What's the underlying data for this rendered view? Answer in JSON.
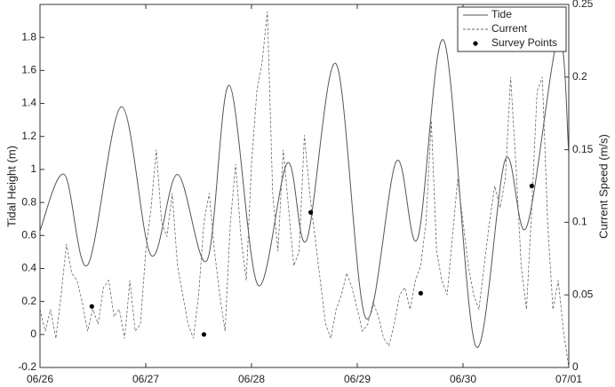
{
  "chart_data": {
    "type": "line",
    "y_label": "Tidal Height (m)",
    "y2_label": "Current Speed (m/s)",
    "xlim": [
      0,
      5
    ],
    "xticks": [
      {
        "value": 0,
        "label": "06/26"
      },
      {
        "value": 1,
        "label": "06/27"
      },
      {
        "value": 2,
        "label": "06/28"
      },
      {
        "value": 3,
        "label": "06/29"
      },
      {
        "value": 4,
        "label": "06/30"
      },
      {
        "value": 5,
        "label": "07/01"
      }
    ],
    "ylim": [
      -0.2,
      2.0
    ],
    "yticks": [
      -0.2,
      0,
      0.2,
      0.4,
      0.6,
      0.8,
      1,
      1.2,
      1.4,
      1.6,
      1.8
    ],
    "y2lim": [
      0,
      0.25
    ],
    "y2ticks": [
      0,
      0.05,
      0.1,
      0.15,
      0.2,
      0.25
    ],
    "legend": "top-right",
    "series": [
      {
        "name": "Tide",
        "type": "line",
        "color": "#555555",
        "dashed": false,
        "x": [
          0,
          0.23,
          0.45,
          0.77,
          1.05,
          1.3,
          1.58,
          1.79,
          2.06,
          2.34,
          2.52,
          2.8,
          3.08,
          3.37,
          3.57,
          3.82,
          4.12,
          4.4,
          4.6,
          4.9,
          5
        ],
        "values": [
          0.63,
          0.97,
          0.42,
          1.38,
          0.48,
          0.97,
          0.45,
          1.51,
          0.3,
          1.04,
          0.57,
          1.64,
          0.1,
          1.05,
          0.58,
          1.78,
          -0.07,
          1.06,
          0.65,
          1.8,
          1.1
        ]
      },
      {
        "name": "Current",
        "type": "line",
        "axis": "y2",
        "color": "#666666",
        "dashed": true,
        "x": [
          0,
          0.05,
          0.1,
          0.15,
          0.2,
          0.25,
          0.3,
          0.35,
          0.4,
          0.45,
          0.5,
          0.55,
          0.6,
          0.65,
          0.7,
          0.75,
          0.8,
          0.85,
          0.9,
          0.95,
          1,
          1.05,
          1.1,
          1.15,
          1.2,
          1.25,
          1.3,
          1.35,
          1.4,
          1.45,
          1.5,
          1.55,
          1.6,
          1.65,
          1.7,
          1.75,
          1.8,
          1.85,
          1.9,
          1.95,
          2,
          2.05,
          2.1,
          2.15,
          2.2,
          2.25,
          2.3,
          2.35,
          2.4,
          2.45,
          2.5,
          2.55,
          2.6,
          2.65,
          2.7,
          2.75,
          2.8,
          2.85,
          2.9,
          2.95,
          3,
          3.05,
          3.1,
          3.15,
          3.2,
          3.25,
          3.3,
          3.35,
          3.4,
          3.45,
          3.5,
          3.55,
          3.6,
          3.65,
          3.7,
          3.75,
          3.8,
          3.85,
          3.9,
          3.95,
          4,
          4.05,
          4.1,
          4.15,
          4.2,
          4.25,
          4.3,
          4.35,
          4.4,
          4.45,
          4.5,
          4.55,
          4.6,
          4.65,
          4.7,
          4.75,
          4.8,
          4.85,
          4.9,
          4.95,
          5
        ],
        "values": [
          0.04,
          0.025,
          0.04,
          0.02,
          0.05,
          0.085,
          0.065,
          0.06,
          0.045,
          0.025,
          0.04,
          0.03,
          0.055,
          0.06,
          0.035,
          0.04,
          0.02,
          0.06,
          0.025,
          0.03,
          0.08,
          0.11,
          0.15,
          0.1,
          0.09,
          0.12,
          0.07,
          0.05,
          0.03,
          0.02,
          0.05,
          0.1,
          0.12,
          0.08,
          0.05,
          0.025,
          0.1,
          0.14,
          0.09,
          0.06,
          0.14,
          0.19,
          0.21,
          0.245,
          0.12,
          0.08,
          0.15,
          0.11,
          0.07,
          0.08,
          0.16,
          0.12,
          0.09,
          0.06,
          0.03,
          0.02,
          0.04,
          0.05,
          0.065,
          0.055,
          0.04,
          0.025,
          0.03,
          0.045,
          0.035,
          0.02,
          0.015,
          0.03,
          0.05,
          0.055,
          0.04,
          0.06,
          0.07,
          0.1,
          0.17,
          0.08,
          0.06,
          0.05,
          0.09,
          0.13,
          0.1,
          0.07,
          0.05,
          0.04,
          0.07,
          0.1,
          0.125,
          0.11,
          0.13,
          0.2,
          0.14,
          0.07,
          0.04,
          0.11,
          0.19,
          0.2,
          0.1,
          0.04,
          0.06,
          0.025,
          0
        ]
      },
      {
        "name": "Survey Points",
        "type": "scatter",
        "color": "#000000",
        "x": [
          0.49,
          1.55,
          2.56,
          3.6,
          4.65
        ],
        "values": [
          0.17,
          0,
          0.74,
          0.25,
          0.9
        ]
      }
    ]
  }
}
